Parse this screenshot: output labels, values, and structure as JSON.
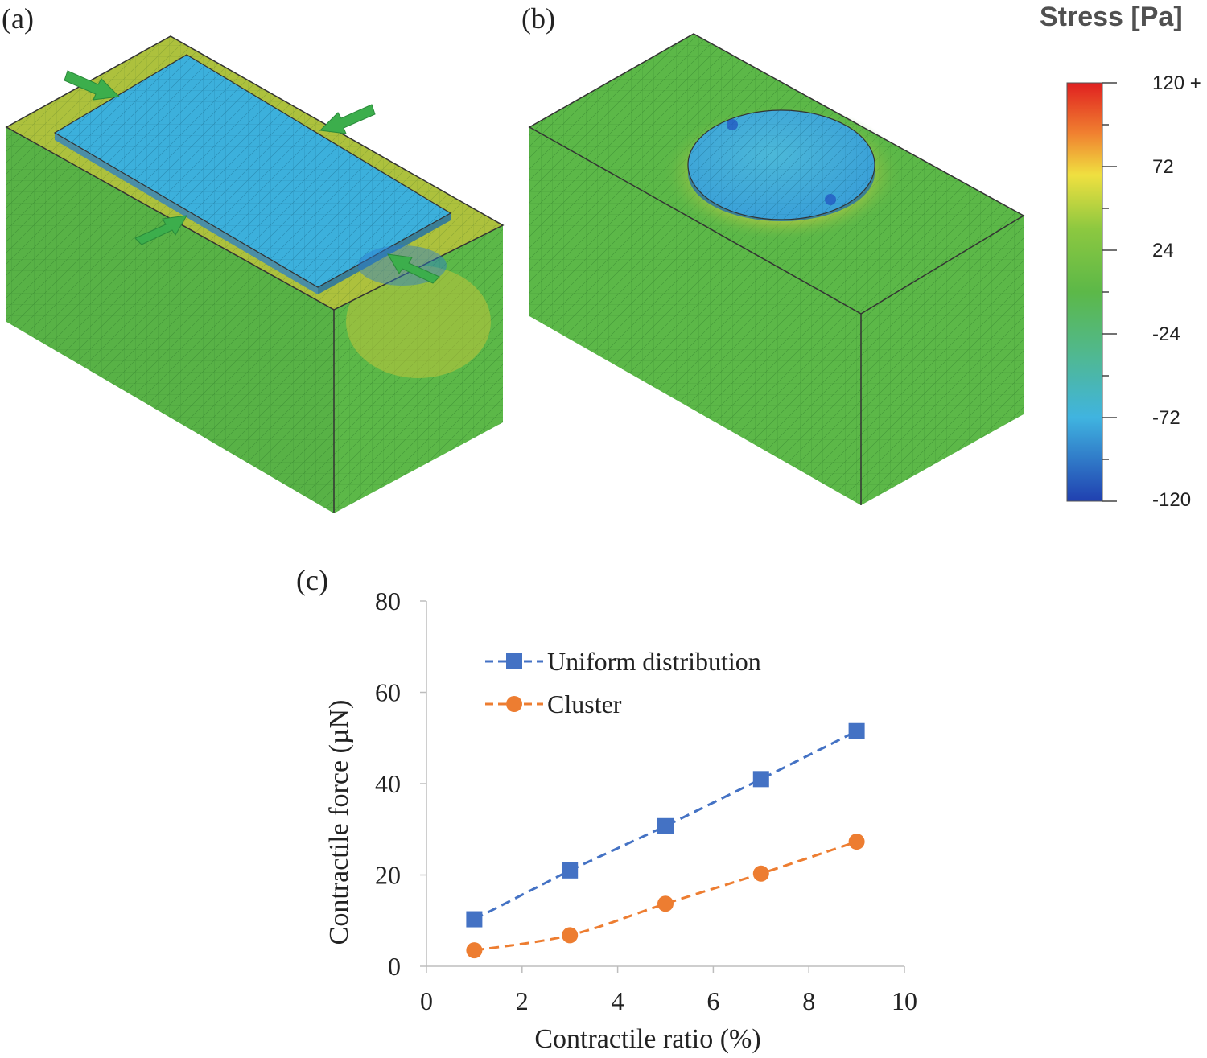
{
  "panels": {
    "a": "(a)",
    "b": "(b)",
    "c": "(c)"
  },
  "colorbar": {
    "title": "Stress [Pa]",
    "labels": [
      "120 +",
      "72",
      "24",
      "-24",
      "-72",
      "-120"
    ],
    "gradient": [
      "#e02020",
      "#f0a020",
      "#f0e040",
      "#5cb848",
      "#40b4e0",
      "#2040b0"
    ]
  },
  "chart_data": {
    "type": "line",
    "xlabel": "Contractile  ratio (%)",
    "ylabel": "Contractile  force (µN)",
    "xlim": [
      0,
      10
    ],
    "ylim": [
      0,
      80
    ],
    "xticks": [
      "0",
      "2",
      "4",
      "6",
      "8",
      "10"
    ],
    "yticks": [
      "0",
      "20",
      "40",
      "60",
      "80"
    ],
    "x": [
      1,
      3,
      5,
      7,
      9
    ],
    "series": [
      {
        "name": "Uniform distribution",
        "marker": "square",
        "color": "#4472c4",
        "values": [
          10.3,
          21.0,
          30.7,
          41.0,
          51.5
        ]
      },
      {
        "name": "Cluster",
        "marker": "circle",
        "color": "#ed7d31",
        "values": [
          3.5,
          6.8,
          13.7,
          20.3,
          27.3
        ]
      }
    ]
  }
}
